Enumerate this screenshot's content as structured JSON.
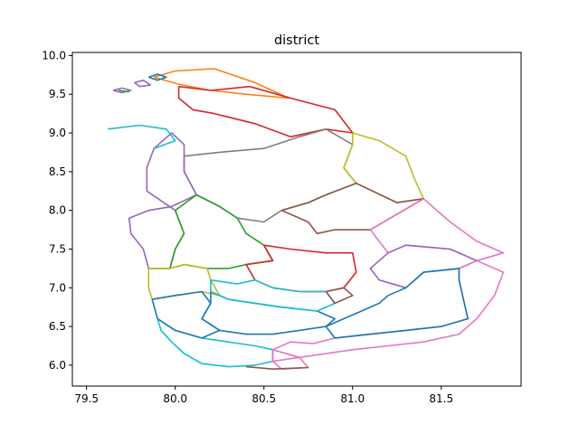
{
  "chart_data": {
    "type": "map",
    "title": "district",
    "xlabel": "",
    "ylabel": "",
    "xlim": [
      79.42,
      81.95
    ],
    "ylim": [
      5.73,
      10.04
    ],
    "x_ticks": [
      79.5,
      80.0,
      80.5,
      81.0,
      81.5
    ],
    "x_tick_labels": [
      "79.5",
      "80.0",
      "80.5",
      "81.0",
      "81.5"
    ],
    "y_ticks": [
      6.0,
      6.5,
      7.0,
      7.5,
      8.0,
      8.5,
      9.0,
      9.5,
      10.0
    ],
    "y_tick_labels": [
      "6.0",
      "6.5",
      "7.0",
      "7.5",
      "8.0",
      "8.5",
      "9.0",
      "9.5",
      "10.0"
    ],
    "grid": false,
    "colors": [
      "#1f77b4",
      "#ff7f0e",
      "#2ca02c",
      "#d62728",
      "#9467bd",
      "#8c564b",
      "#e377c2",
      "#7f7f7f",
      "#bcbd22",
      "#17becf"
    ],
    "series": [
      {
        "color": "#ff7f0e",
        "points": [
          [
            79.88,
            9.72
          ],
          [
            80.0,
            9.8
          ],
          [
            80.22,
            9.83
          ],
          [
            80.45,
            9.65
          ],
          [
            80.64,
            9.45
          ],
          [
            80.4,
            9.5
          ],
          [
            80.2,
            9.55
          ],
          [
            80.02,
            9.63
          ],
          [
            79.88,
            9.72
          ]
        ]
      },
      {
        "color": "#d62728",
        "points": [
          [
            80.02,
            9.6
          ],
          [
            80.2,
            9.55
          ],
          [
            80.42,
            9.6
          ],
          [
            80.65,
            9.45
          ],
          [
            80.9,
            9.3
          ],
          [
            81.0,
            9.0
          ],
          [
            80.85,
            9.05
          ],
          [
            80.65,
            8.95
          ],
          [
            80.45,
            9.12
          ],
          [
            80.22,
            9.25
          ],
          [
            80.1,
            9.3
          ],
          [
            80.02,
            9.45
          ],
          [
            80.02,
            9.6
          ]
        ]
      },
      {
        "color": "#7f7f7f",
        "points": [
          [
            80.05,
            8.7
          ],
          [
            80.25,
            8.75
          ],
          [
            80.5,
            8.8
          ],
          [
            80.7,
            8.95
          ],
          [
            80.85,
            9.05
          ],
          [
            81.0,
            8.85
          ],
          [
            80.95,
            8.55
          ],
          [
            81.02,
            8.35
          ],
          [
            80.85,
            8.2
          ],
          [
            80.75,
            8.1
          ],
          [
            80.6,
            8.0
          ],
          [
            80.5,
            7.85
          ],
          [
            80.35,
            7.9
          ],
          [
            80.25,
            8.05
          ],
          [
            80.12,
            8.2
          ],
          [
            80.05,
            8.5
          ],
          [
            80.05,
            8.7
          ]
        ]
      },
      {
        "color": "#9467bd",
        "points": [
          [
            79.84,
            8.55
          ],
          [
            79.88,
            8.8
          ],
          [
            79.98,
            9.0
          ],
          [
            80.05,
            8.85
          ],
          [
            80.05,
            8.5
          ],
          [
            80.12,
            8.2
          ],
          [
            79.98,
            8.05
          ],
          [
            79.85,
            8.0
          ],
          [
            79.74,
            7.9
          ],
          [
            79.75,
            7.7
          ],
          [
            79.82,
            7.5
          ],
          [
            79.85,
            7.25
          ],
          [
            79.97,
            7.25
          ],
          [
            80.0,
            7.5
          ],
          [
            80.05,
            7.7
          ],
          [
            80.0,
            8.0
          ],
          [
            79.84,
            8.25
          ],
          [
            79.84,
            8.55
          ]
        ]
      },
      {
        "color": "#17becf",
        "points": [
          [
            79.62,
            9.05
          ],
          [
            79.8,
            9.1
          ],
          [
            79.95,
            9.05
          ],
          [
            80.0,
            8.9
          ],
          [
            79.88,
            8.8
          ]
        ]
      },
      {
        "color": "#bcbd22",
        "points": [
          [
            81.0,
            9.0
          ],
          [
            81.15,
            8.9
          ],
          [
            81.3,
            8.7
          ],
          [
            81.35,
            8.4
          ],
          [
            81.4,
            8.15
          ],
          [
            81.25,
            8.1
          ],
          [
            81.02,
            8.35
          ],
          [
            80.95,
            8.55
          ],
          [
            81.0,
            8.85
          ],
          [
            81.0,
            9.0
          ]
        ]
      },
      {
        "color": "#8c564b",
        "points": [
          [
            80.6,
            8.0
          ],
          [
            80.75,
            8.1
          ],
          [
            80.85,
            8.2
          ],
          [
            81.02,
            8.35
          ],
          [
            81.25,
            8.1
          ],
          [
            81.4,
            8.15
          ],
          [
            81.25,
            7.95
          ],
          [
            81.1,
            7.75
          ],
          [
            80.9,
            7.75
          ],
          [
            80.8,
            7.7
          ],
          [
            80.75,
            7.85
          ],
          [
            80.6,
            8.0
          ]
        ]
      },
      {
        "color": "#e377c2",
        "points": [
          [
            81.4,
            8.15
          ],
          [
            81.55,
            7.85
          ],
          [
            81.7,
            7.6
          ],
          [
            81.85,
            7.45
          ],
          [
            81.7,
            7.35
          ],
          [
            81.55,
            7.5
          ],
          [
            81.3,
            7.55
          ],
          [
            81.2,
            7.45
          ],
          [
            81.1,
            7.75
          ],
          [
            81.25,
            7.95
          ],
          [
            81.4,
            8.15
          ]
        ]
      },
      {
        "color": "#2ca02c",
        "points": [
          [
            80.12,
            8.2
          ],
          [
            80.25,
            8.05
          ],
          [
            80.35,
            7.9
          ],
          [
            80.4,
            7.7
          ],
          [
            80.5,
            7.55
          ],
          [
            80.55,
            7.35
          ],
          [
            80.4,
            7.3
          ],
          [
            80.3,
            7.25
          ],
          [
            80.18,
            7.25
          ],
          [
            80.05,
            7.3
          ],
          [
            79.97,
            7.25
          ],
          [
            80.0,
            7.5
          ],
          [
            80.05,
            7.7
          ],
          [
            80.0,
            8.0
          ],
          [
            80.12,
            8.2
          ]
        ]
      },
      {
        "color": "#d62728",
        "points": [
          [
            80.5,
            7.55
          ],
          [
            80.65,
            7.5
          ],
          [
            80.85,
            7.45
          ],
          [
            81.0,
            7.45
          ],
          [
            81.02,
            7.2
          ],
          [
            80.95,
            7.0
          ],
          [
            80.85,
            6.95
          ],
          [
            80.7,
            6.95
          ],
          [
            80.55,
            7.0
          ],
          [
            80.45,
            7.1
          ],
          [
            80.4,
            7.3
          ],
          [
            80.55,
            7.35
          ],
          [
            80.5,
            7.55
          ]
        ]
      },
      {
        "color": "#bcbd22",
        "points": [
          [
            79.85,
            7.25
          ],
          [
            79.85,
            7.0
          ],
          [
            79.87,
            6.85
          ],
          [
            80.0,
            6.9
          ],
          [
            80.15,
            6.95
          ],
          [
            80.25,
            6.9
          ],
          [
            80.2,
            7.1
          ],
          [
            80.18,
            7.25
          ],
          [
            80.05,
            7.3
          ],
          [
            79.97,
            7.25
          ],
          [
            79.85,
            7.25
          ]
        ]
      },
      {
        "color": "#9467bd",
        "points": [
          [
            81.2,
            7.45
          ],
          [
            81.3,
            7.55
          ],
          [
            81.55,
            7.5
          ],
          [
            81.7,
            7.35
          ],
          [
            81.6,
            7.25
          ],
          [
            81.4,
            7.2
          ],
          [
            81.3,
            7.0
          ],
          [
            81.15,
            7.1
          ],
          [
            81.1,
            7.25
          ],
          [
            81.2,
            7.45
          ]
        ]
      },
      {
        "color": "#e377c2",
        "points": [
          [
            81.7,
            7.35
          ],
          [
            81.85,
            7.2
          ],
          [
            81.8,
            6.9
          ],
          [
            81.7,
            6.6
          ],
          [
            81.6,
            6.4
          ],
          [
            81.4,
            6.3
          ],
          [
            81.2,
            6.25
          ],
          [
            81.0,
            6.2
          ],
          [
            80.7,
            6.1
          ],
          [
            80.55,
            6.05
          ],
          [
            80.55,
            6.2
          ],
          [
            80.65,
            6.3
          ],
          [
            80.78,
            6.28
          ],
          [
            80.9,
            6.35
          ],
          [
            81.1,
            6.4
          ],
          [
            81.3,
            6.45
          ],
          [
            81.5,
            6.5
          ],
          [
            81.65,
            6.6
          ],
          [
            81.62,
            6.9
          ],
          [
            81.6,
            7.1
          ],
          [
            81.6,
            7.25
          ],
          [
            81.7,
            7.35
          ]
        ]
      },
      {
        "color": "#1f77b4",
        "points": [
          [
            81.3,
            7.0
          ],
          [
            81.4,
            7.2
          ],
          [
            81.6,
            7.25
          ],
          [
            81.6,
            7.1
          ],
          [
            81.62,
            6.9
          ],
          [
            81.65,
            6.6
          ],
          [
            81.5,
            6.5
          ],
          [
            81.3,
            6.45
          ],
          [
            81.1,
            6.4
          ],
          [
            80.9,
            6.35
          ],
          [
            80.85,
            6.5
          ],
          [
            80.95,
            6.6
          ],
          [
            81.05,
            6.7
          ],
          [
            81.15,
            6.8
          ],
          [
            81.2,
            6.9
          ],
          [
            81.3,
            7.0
          ]
        ]
      },
      {
        "color": "#1f77b4",
        "points": [
          [
            80.2,
            6.95
          ],
          [
            80.3,
            6.85
          ],
          [
            80.45,
            6.8
          ],
          [
            80.6,
            6.75
          ],
          [
            80.8,
            6.7
          ],
          [
            80.9,
            6.6
          ],
          [
            80.85,
            6.5
          ],
          [
            80.7,
            6.45
          ],
          [
            80.55,
            6.4
          ],
          [
            80.4,
            6.4
          ],
          [
            80.25,
            6.45
          ],
          [
            80.15,
            6.6
          ],
          [
            80.2,
            6.8
          ],
          [
            80.2,
            6.95
          ]
        ]
      },
      {
        "color": "#17becf",
        "points": [
          [
            80.2,
            7.1
          ],
          [
            80.35,
            7.05
          ],
          [
            80.45,
            7.1
          ],
          [
            80.55,
            7.0
          ],
          [
            80.7,
            6.95
          ],
          [
            80.85,
            6.95
          ],
          [
            80.9,
            6.8
          ],
          [
            80.8,
            6.7
          ],
          [
            80.6,
            6.75
          ],
          [
            80.45,
            6.8
          ],
          [
            80.3,
            6.85
          ],
          [
            80.2,
            6.95
          ],
          [
            80.2,
            7.1
          ]
        ]
      },
      {
        "color": "#8c564b",
        "points": [
          [
            80.85,
            6.95
          ],
          [
            80.95,
            7.0
          ],
          [
            81.0,
            6.9
          ],
          [
            80.9,
            6.8
          ],
          [
            80.85,
            6.95
          ]
        ]
      },
      {
        "color": "#17becf",
        "points": [
          [
            79.9,
            6.6
          ],
          [
            80.0,
            6.45
          ],
          [
            80.15,
            6.35
          ],
          [
            80.3,
            6.3
          ],
          [
            80.45,
            6.25
          ],
          [
            80.55,
            6.2
          ],
          [
            80.55,
            6.05
          ],
          [
            80.45,
            6.0
          ],
          [
            80.3,
            5.98
          ],
          [
            80.15,
            6.02
          ],
          [
            80.05,
            6.15
          ],
          [
            79.98,
            6.3
          ],
          [
            79.92,
            6.45
          ],
          [
            79.9,
            6.6
          ]
        ]
      },
      {
        "color": "#e377c2",
        "points": [
          [
            80.55,
            6.2
          ],
          [
            80.55,
            6.05
          ],
          [
            80.6,
            5.95
          ],
          [
            80.75,
            5.97
          ],
          [
            80.7,
            6.1
          ],
          [
            80.55,
            6.2
          ]
        ]
      },
      {
        "color": "#8c564b",
        "points": [
          [
            80.4,
            5.98
          ],
          [
            80.55,
            5.95
          ],
          [
            80.75,
            5.97
          ]
        ]
      },
      {
        "color": "#1f77b4",
        "points": [
          [
            79.87,
            6.85
          ],
          [
            79.9,
            6.6
          ],
          [
            80.0,
            6.45
          ],
          [
            80.15,
            6.35
          ],
          [
            80.25,
            6.45
          ],
          [
            80.15,
            6.6
          ],
          [
            80.2,
            6.8
          ],
          [
            80.15,
            6.95
          ],
          [
            80.0,
            6.9
          ],
          [
            79.87,
            6.85
          ]
        ]
      },
      {
        "color": "#9467bd",
        "points": [
          [
            79.65,
            9.55
          ],
          [
            79.7,
            9.52
          ],
          [
            79.75,
            9.55
          ],
          [
            79.7,
            9.58
          ],
          [
            79.65,
            9.55
          ]
        ]
      },
      {
        "color": "#2ca02c",
        "points": [
          [
            79.68,
            9.55
          ],
          [
            79.74,
            9.53
          ]
        ]
      },
      {
        "color": "#1f77b4",
        "points": [
          [
            79.85,
            9.72
          ],
          [
            79.9,
            9.76
          ],
          [
            79.95,
            9.72
          ],
          [
            79.9,
            9.68
          ],
          [
            79.85,
            9.72
          ]
        ]
      },
      {
        "color": "#9467bd",
        "points": [
          [
            79.77,
            9.65
          ],
          [
            79.82,
            9.68
          ],
          [
            79.86,
            9.62
          ],
          [
            79.8,
            9.6
          ],
          [
            79.77,
            9.65
          ]
        ]
      }
    ]
  }
}
